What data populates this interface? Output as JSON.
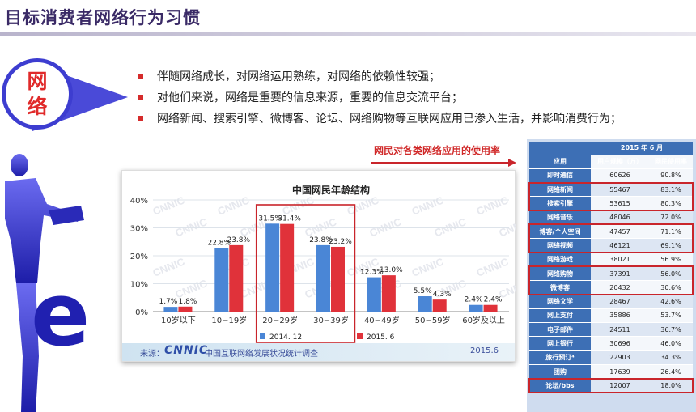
{
  "page": {
    "title": "目标消费者网络行为习惯"
  },
  "badge": {
    "chars": [
      "网",
      "络"
    ]
  },
  "bullets": [
    "伴随网络成长，对网络运用熟练，对网络的依赖性较强；",
    "对他们来说，网络是重要的信息来源，重要的信息交流平台；",
    "网络新闻、搜索引擎、微博客、论坛、网络购物等互联网应用已渗入生活，并影响消费行为；"
  ],
  "silhouette": {
    "letter": "e"
  },
  "colors": {
    "series_2014": "#4a86d6",
    "series_2015": "#e0323a",
    "highlight": "#c9252b",
    "table_header": "#3d6fb5"
  },
  "chart_data": {
    "type": "bar",
    "title": "中国网民年龄结构",
    "categories": [
      "10岁以下",
      "10−19岁",
      "20−29岁",
      "30−39岁",
      "40−49岁",
      "50−59岁",
      "60岁及以上"
    ],
    "series": [
      {
        "name": "2014. 12",
        "values": [
          1.7,
          22.8,
          31.5,
          23.8,
          12.3,
          5.5,
          2.4
        ]
      },
      {
        "name": "2015. 6",
        "values": [
          1.8,
          23.8,
          31.4,
          23.2,
          13.0,
          4.3,
          2.4
        ]
      }
    ],
    "yticks": [
      "0%",
      "10%",
      "20%",
      "30%",
      "40%"
    ],
    "ylim": [
      0,
      40
    ],
    "legend_position": "bottom",
    "highlighted_categories": [
      "20−29岁",
      "30−39岁"
    ],
    "watermark": "CNNIC",
    "footer": {
      "source_label": "来源：",
      "logo": "CNNIC",
      "survey": "中国互联网络发展状况统计调查",
      "date": "2015.6"
    }
  },
  "usage": {
    "title": "网民对各类网络应用的使用率",
    "period": "2015 年 6 月",
    "headers": [
      "应用",
      "用户规模（万）",
      "网民使用率"
    ],
    "rows": [
      {
        "app": "即时通信",
        "users": "60626",
        "rate": "90.8%"
      },
      {
        "app": "网络新闻",
        "users": "55467",
        "rate": "83.1%"
      },
      {
        "app": "搜索引擎",
        "users": "53615",
        "rate": "80.3%"
      },
      {
        "app": "网络音乐",
        "users": "48046",
        "rate": "72.0%"
      },
      {
        "app": "博客/个人空间",
        "users": "47457",
        "rate": "71.1%"
      },
      {
        "app": "网络视频",
        "users": "46121",
        "rate": "69.1%"
      },
      {
        "app": "网络游戏",
        "users": "38021",
        "rate": "56.9%"
      },
      {
        "app": "网络购物",
        "users": "37391",
        "rate": "56.0%"
      },
      {
        "app": "微博客",
        "users": "20432",
        "rate": "30.6%"
      },
      {
        "app": "网络文学",
        "users": "28467",
        "rate": "42.6%"
      },
      {
        "app": "网上支付",
        "users": "35886",
        "rate": "53.7%"
      },
      {
        "app": "电子邮件",
        "users": "24511",
        "rate": "36.7%"
      },
      {
        "app": "网上银行",
        "users": "30696",
        "rate": "46.0%"
      },
      {
        "app": "旅行预订⁴",
        "users": "22903",
        "rate": "34.3%"
      },
      {
        "app": "团购",
        "users": "17639",
        "rate": "26.4%"
      },
      {
        "app": "论坛/bbs",
        "users": "12007",
        "rate": "18.0%"
      }
    ],
    "highlighted_groups": [
      [
        "网络新闻",
        "搜索引擎"
      ],
      [
        "博客/个人空间",
        "网络视频"
      ],
      [
        "网络购物",
        "微博客"
      ],
      [
        "论坛/bbs"
      ]
    ]
  }
}
